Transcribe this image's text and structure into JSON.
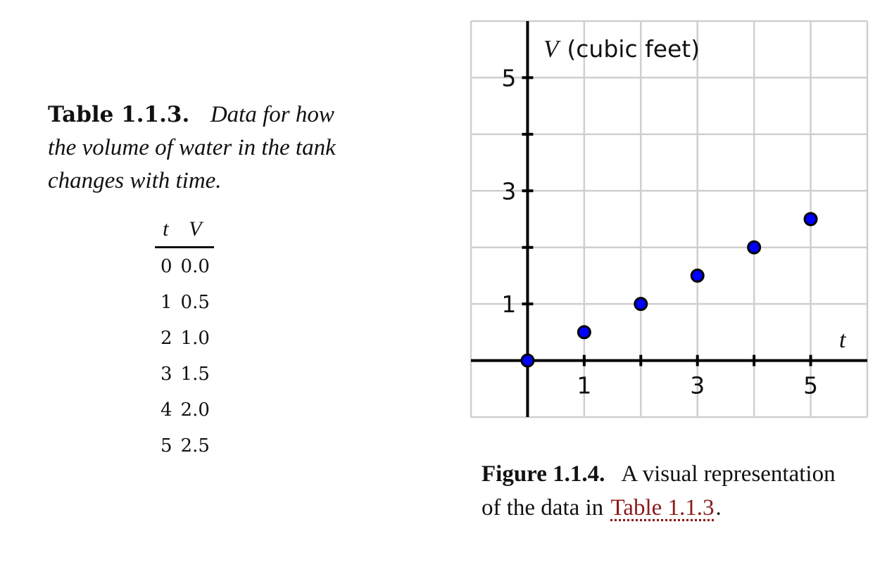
{
  "table": {
    "caption_label": "Table 1.1.3.",
    "caption_text": "Data for how the volume of water in the tank changes with time.",
    "headers": [
      "t",
      "V"
    ],
    "rows": [
      [
        "0",
        "0.0"
      ],
      [
        "1",
        "0.5"
      ],
      [
        "2",
        "1.0"
      ],
      [
        "3",
        "1.5"
      ],
      [
        "4",
        "2.0"
      ],
      [
        "5",
        "2.5"
      ]
    ]
  },
  "figure": {
    "caption_label": "Figure 1.1.4.",
    "caption_text": "A visual representation of the data in",
    "link_text": "Table 1.1.3",
    "caption_end": "."
  },
  "chart_data": {
    "type": "scatter",
    "title": "",
    "xlabel": "t",
    "ylabel_var": "V",
    "ylabel_unit": "(cubic feet)",
    "xlim": [
      -1,
      6
    ],
    "ylim": [
      -1,
      6
    ],
    "grid": true,
    "x_ticks": [
      1,
      2,
      3,
      4,
      5
    ],
    "y_ticks": [
      1,
      2,
      3,
      4,
      5
    ],
    "x_tick_labels": [
      1,
      3,
      5
    ],
    "y_tick_labels": [
      1,
      3,
      5
    ],
    "point_color": "#0000ff",
    "series": [
      {
        "x": [
          0,
          1,
          2,
          3,
          4,
          5
        ],
        "y": [
          0.0,
          0.5,
          1.0,
          1.5,
          2.0,
          2.5
        ]
      }
    ]
  }
}
